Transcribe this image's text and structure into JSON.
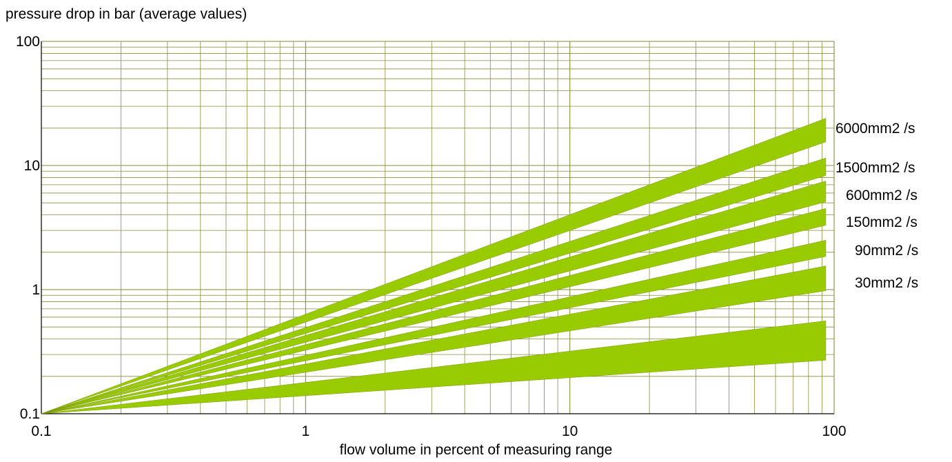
{
  "chart_data": {
    "type": "area",
    "x_scale": "log",
    "y_scale": "log",
    "xlim": [
      0.1,
      100
    ],
    "ylim": [
      0.1,
      100
    ],
    "ylabel": "pressure drop in bar (average values)",
    "xlabel": "flow volume in percent of measuring range",
    "x_ticks": [
      {
        "label": "0.1",
        "value": 0.1
      },
      {
        "label": "1",
        "value": 1
      },
      {
        "label": "10",
        "value": 10
      },
      {
        "label": "100",
        "value": 100
      }
    ],
    "y_ticks": [
      {
        "label": "0.1",
        "value": 0.1
      },
      {
        "label": "1",
        "value": 1
      },
      {
        "label": "10",
        "value": 10
      },
      {
        "label": "100",
        "value": 100
      }
    ],
    "grid": true,
    "grid_color": "#8b8b3a",
    "band_color": "#99cc00",
    "series": [
      {
        "name": "6000mm2 /s",
        "x": [
          0.1,
          93
        ],
        "y_upper": [
          0.1,
          24
        ],
        "y_lower": [
          0.1,
          15.5
        ]
      },
      {
        "name": "1500mm2 /s",
        "x": [
          0.1,
          93
        ],
        "y_upper": [
          0.1,
          11.5
        ],
        "y_lower": [
          0.1,
          8.3
        ]
      },
      {
        "name": "600mm2  /s",
        "x": [
          0.1,
          93
        ],
        "y_upper": [
          0.1,
          7.5
        ],
        "y_lower": [
          0.1,
          5.1
        ]
      },
      {
        "name": "150mm2 /s",
        "x": [
          0.1,
          93
        ],
        "y_upper": [
          0.1,
          4.5
        ],
        "y_lower": [
          0.1,
          3.3
        ]
      },
      {
        "name": "90mm2 /s",
        "x": [
          0.1,
          93
        ],
        "y_upper": [
          0.1,
          2.5
        ],
        "y_lower": [
          0.1,
          1.85
        ]
      },
      {
        "name": "30mm2 /s",
        "x": [
          0.1,
          93
        ],
        "y_upper": [
          0.1,
          1.55
        ],
        "y_lower": [
          0.1,
          0.98
        ]
      },
      {
        "name": "",
        "x": [
          0.1,
          93
        ],
        "y_upper": [
          0.1,
          0.56
        ],
        "y_lower": [
          0.1,
          0.27
        ]
      }
    ]
  }
}
